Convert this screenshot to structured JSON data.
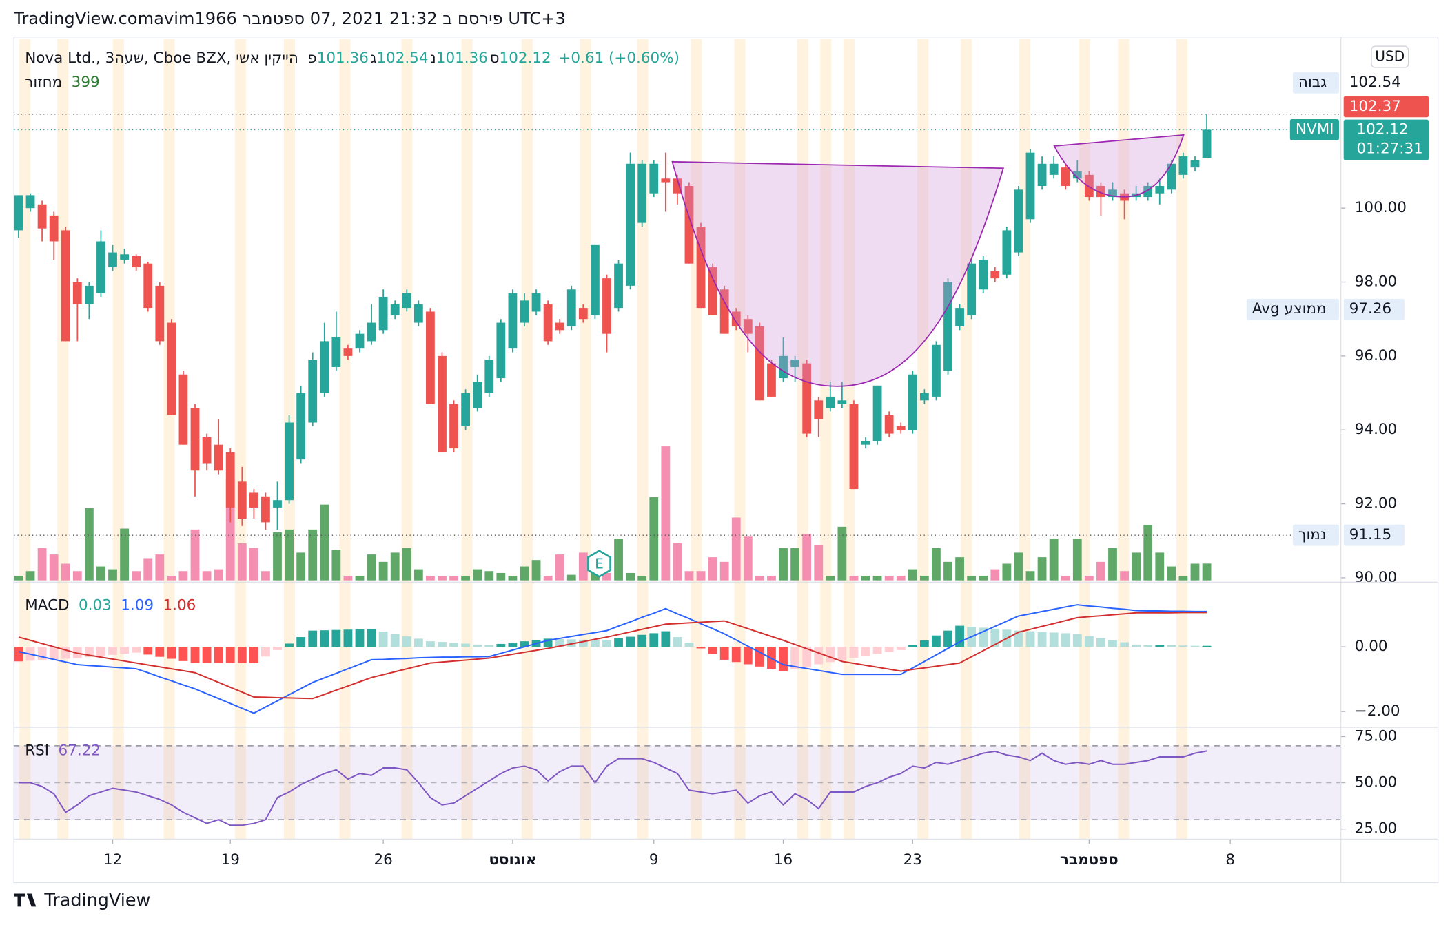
{
  "header": {
    "attribution": "TradingView.comavim1966 פירסם ב 21:32 2021 ,07 ספטמבר UTC+3",
    "logo": "TradingView"
  },
  "chart_data": {
    "type": "candlestick",
    "title": "Nova Ltd., 3שעה, Cboe BZX, הייקין אשי",
    "ohlc_labels": [
      "פ",
      "ג",
      "נ",
      "ס"
    ],
    "change": "+0.61 (+0.60%)",
    "currency": "USD",
    "up_color": "#26a69a",
    "down_color": "#ef5350",
    "candles": [
      [
        99.4,
        100.35,
        99.2,
        100.35
      ],
      [
        100.0,
        100.4,
        99.9,
        100.35
      ],
      [
        100.1,
        100.2,
        99.1,
        99.45
      ],
      [
        99.8,
        99.9,
        98.6,
        99.1
      ],
      [
        99.4,
        99.5,
        96.4,
        96.4
      ],
      [
        98.0,
        98.1,
        96.4,
        97.4
      ],
      [
        97.4,
        98.0,
        97.0,
        97.9
      ],
      [
        97.7,
        99.4,
        97.6,
        99.1
      ],
      [
        98.4,
        99.0,
        98.3,
        98.8
      ],
      [
        98.6,
        98.9,
        98.5,
        98.75
      ],
      [
        98.7,
        98.75,
        98.3,
        98.4
      ],
      [
        98.5,
        98.55,
        97.2,
        97.3
      ],
      [
        97.9,
        98.0,
        96.3,
        96.4
      ],
      [
        96.9,
        97.0,
        94.4,
        94.4
      ],
      [
        95.5,
        95.6,
        93.6,
        93.6
      ],
      [
        94.6,
        94.7,
        92.2,
        92.9
      ],
      [
        93.8,
        93.9,
        92.9,
        93.1
      ],
      [
        93.6,
        94.3,
        92.8,
        92.9
      ],
      [
        93.4,
        93.5,
        91.5,
        91.9
      ],
      [
        92.6,
        93.0,
        91.4,
        91.6
      ],
      [
        92.3,
        92.4,
        91.6,
        91.9
      ],
      [
        92.2,
        92.3,
        91.3,
        91.5
      ],
      [
        91.9,
        92.6,
        91.3,
        92.1
      ],
      [
        92.1,
        94.4,
        92.0,
        94.2
      ],
      [
        93.2,
        95.2,
        93.1,
        95.0
      ],
      [
        94.2,
        96.1,
        94.1,
        95.9
      ],
      [
        95.0,
        96.9,
        94.9,
        96.4
      ],
      [
        95.7,
        97.2,
        95.6,
        96.5
      ],
      [
        96.2,
        96.3,
        95.9,
        96.0
      ],
      [
        96.2,
        96.7,
        96.1,
        96.6
      ],
      [
        96.4,
        97.4,
        96.3,
        96.9
      ],
      [
        96.7,
        97.8,
        96.6,
        97.6
      ],
      [
        97.1,
        97.5,
        97.0,
        97.4
      ],
      [
        97.3,
        97.8,
        97.2,
        97.7
      ],
      [
        96.9,
        97.5,
        96.8,
        97.4
      ],
      [
        97.2,
        97.3,
        94.7,
        94.7
      ],
      [
        96.0,
        96.1,
        93.4,
        93.4
      ],
      [
        94.7,
        94.8,
        93.4,
        93.5
      ],
      [
        94.1,
        95.1,
        94.0,
        95.0
      ],
      [
        94.6,
        95.5,
        94.5,
        95.3
      ],
      [
        95.0,
        96.0,
        94.9,
        95.9
      ],
      [
        95.4,
        97.0,
        95.3,
        96.9
      ],
      [
        96.2,
        97.8,
        96.1,
        97.7
      ],
      [
        96.9,
        97.7,
        96.8,
        97.5
      ],
      [
        97.2,
        97.8,
        97.1,
        97.7
      ],
      [
        97.4,
        97.5,
        96.3,
        96.4
      ],
      [
        96.9,
        97.0,
        96.6,
        96.7
      ],
      [
        96.8,
        97.9,
        96.7,
        97.8
      ],
      [
        97.3,
        97.4,
        96.9,
        97.0
      ],
      [
        97.1,
        99.0,
        97.0,
        99.0
      ],
      [
        98.1,
        98.2,
        96.1,
        96.6
      ],
      [
        97.3,
        98.6,
        97.2,
        98.5
      ],
      [
        97.9,
        101.5,
        97.8,
        101.2
      ],
      [
        99.6,
        101.3,
        99.5,
        101.2
      ],
      [
        100.4,
        101.3,
        100.3,
        101.2
      ],
      [
        100.8,
        101.5,
        99.9,
        100.7
      ],
      [
        100.8,
        100.9,
        100.1,
        100.4
      ],
      [
        100.6,
        100.7,
        98.5,
        98.5
      ],
      [
        99.5,
        99.6,
        97.3,
        97.3
      ],
      [
        98.4,
        98.5,
        97.1,
        97.1
      ],
      [
        97.8,
        97.9,
        96.6,
        96.6
      ],
      [
        97.2,
        97.3,
        96.7,
        96.8
      ],
      [
        97.0,
        97.1,
        96.1,
        96.6
      ],
      [
        96.8,
        96.9,
        94.8,
        94.8
      ],
      [
        95.8,
        95.9,
        94.9,
        94.9
      ],
      [
        95.4,
        96.5,
        95.3,
        96.0
      ],
      [
        95.7,
        96.0,
        95.3,
        95.9
      ],
      [
        95.8,
        95.9,
        93.8,
        93.9
      ],
      [
        94.8,
        94.9,
        93.8,
        94.3
      ],
      [
        94.6,
        95.3,
        94.5,
        94.9
      ],
      [
        94.7,
        95.3,
        94.6,
        94.8
      ],
      [
        94.7,
        94.8,
        92.4,
        92.4
      ],
      [
        93.6,
        93.8,
        93.5,
        93.7
      ],
      [
        93.7,
        95.2,
        93.6,
        95.2
      ],
      [
        94.4,
        94.5,
        93.8,
        93.9
      ],
      [
        94.1,
        94.2,
        93.9,
        94.0
      ],
      [
        94.0,
        95.6,
        93.9,
        95.5
      ],
      [
        94.8,
        95.1,
        94.7,
        95.0
      ],
      [
        94.9,
        96.4,
        94.8,
        96.3
      ],
      [
        95.6,
        98.1,
        95.5,
        98.0
      ],
      [
        96.8,
        97.4,
        96.7,
        97.3
      ],
      [
        97.1,
        98.6,
        97.0,
        98.5
      ],
      [
        97.8,
        98.7,
        97.7,
        98.6
      ],
      [
        98.3,
        98.4,
        98.0,
        98.1
      ],
      [
        98.2,
        99.5,
        98.1,
        99.4
      ],
      [
        98.8,
        100.6,
        98.7,
        100.5
      ],
      [
        99.7,
        101.6,
        99.6,
        101.5
      ],
      [
        100.6,
        101.4,
        100.5,
        101.2
      ],
      [
        100.9,
        101.4,
        100.8,
        101.2
      ],
      [
        101.1,
        101.2,
        100.5,
        100.6
      ],
      [
        100.8,
        101.3,
        100.7,
        101.0
      ],
      [
        100.9,
        101.0,
        100.2,
        100.3
      ],
      [
        100.6,
        100.7,
        99.8,
        100.3
      ],
      [
        100.3,
        100.7,
        100.2,
        100.5
      ],
      [
        100.4,
        100.5,
        99.7,
        100.2
      ],
      [
        100.3,
        100.6,
        100.2,
        100.4
      ],
      [
        100.3,
        100.7,
        100.2,
        100.6
      ],
      [
        100.4,
        100.8,
        100.1,
        100.6
      ],
      [
        100.5,
        101.3,
        100.4,
        101.2
      ],
      [
        100.9,
        101.5,
        100.8,
        101.4
      ],
      [
        101.1,
        101.4,
        101.0,
        101.3
      ],
      [
        101.36,
        102.54,
        101.36,
        102.12
      ]
    ],
    "volume": {
      "label": "מחזור",
      "up_color": "#5fa868",
      "down_color": "#f48fb1",
      "values": [
        110,
        220,
        770,
        616,
        396,
        220,
        1716,
        330,
        264,
        1232,
        220,
        528,
        616,
        110,
        220,
        1210,
        220,
        264,
        2420,
        880,
        770,
        220,
        1144,
        1210,
        660,
        1210,
        1804,
        726,
        110,
        110,
        616,
        440,
        660,
        770,
        264,
        110,
        110,
        110,
        110,
        264,
        220,
        176,
        110,
        330,
        484,
        110,
        616,
        132,
        660,
        484,
        176,
        990,
        176,
        110,
        1980,
        3190,
        880,
        220,
        220,
        550,
        440,
        1496,
        1056,
        110,
        110,
        770,
        770,
        1100,
        836,
        110,
        1276,
        110,
        110,
        110,
        110,
        110,
        264,
        110,
        770,
        440,
        550,
        110,
        110,
        264,
        396,
        660,
        220,
        550,
        990,
        110,
        990,
        110,
        440,
        770,
        220,
        660,
        1320,
        660,
        330,
        110,
        396,
        399
      ]
    },
    "xlim": [
      -0.4,
      112.4
    ],
    "xticks": [
      {
        "value": 8,
        "label": "12"
      },
      {
        "value": 18,
        "label": "19"
      },
      {
        "value": 31,
        "label": "26"
      },
      {
        "value": 42,
        "label": "אוגוסט"
      },
      {
        "value": 54,
        "label": "9"
      },
      {
        "value": 65,
        "label": "16"
      },
      {
        "value": 76,
        "label": "23"
      },
      {
        "value": 91,
        "label": "ספטמבר"
      },
      {
        "value": 103,
        "label": "8"
      }
    ],
    "ylim": [
      89.93,
      104.58
    ],
    "yticks": [
      {
        "value": 90,
        "label": "90.00"
      },
      {
        "value": 92,
        "label": "92.00"
      },
      {
        "value": 94,
        "label": "94.00"
      },
      {
        "value": 96,
        "label": "96.00"
      },
      {
        "value": 98,
        "label": "98.00"
      },
      {
        "value": 100,
        "label": "100.00"
      }
    ],
    "high_label": "גבוה",
    "ticker": "NVMI",
    "countdown": "01:27:31",
    "pre_price": 102.37,
    "avg": {
      "label": "Avg ממוצע",
      "value": 97.26
    },
    "low": {
      "label": "נמוך",
      "value": 91.15
    },
    "earnings_label": "E",
    "macd": {
      "title": "MACD",
      "ylim": [
        -2.43,
        1.71
      ],
      "yticks": [
        {
          "value": 0,
          "label": "0.00"
        },
        {
          "value": -2,
          "label": "−2.00"
        }
      ],
      "macd_color": "#2962ff",
      "signal_color": "#d32f2f",
      "macd": [
        -0.15,
        -0.23,
        -0.31,
        -0.39,
        -0.47,
        -0.55,
        -0.58,
        -0.6,
        -0.63,
        -0.65,
        -0.68,
        -0.8,
        -0.93,
        -1.05,
        -1.18,
        -1.3,
        -1.45,
        -1.6,
        -1.75,
        -1.9,
        -2.05,
        -1.86,
        -1.67,
        -1.48,
        -1.29,
        -1.1,
        -0.96,
        -0.82,
        -0.68,
        -0.54,
        -0.4,
        -0.39,
        -0.37,
        -0.36,
        -0.34,
        -0.33,
        -0.32,
        -0.32,
        -0.31,
        -0.31,
        -0.3,
        -0.2,
        -0.1,
        0.0,
        0.1,
        0.2,
        0.26,
        0.32,
        0.38,
        0.44,
        0.5,
        0.64,
        0.77,
        0.91,
        1.04,
        1.18,
        1.02,
        0.87,
        0.71,
        0.56,
        0.4,
        0.21,
        0.02,
        -0.17,
        -0.36,
        -0.55,
        -0.61,
        -0.67,
        -0.73,
        -0.79,
        -0.85,
        -0.85,
        -0.85,
        -0.85,
        -0.85,
        -0.85,
        -0.65,
        -0.45,
        -0.25,
        -0.05,
        0.15,
        0.31,
        0.47,
        0.63,
        0.79,
        0.95,
        1.02,
        1.09,
        1.16,
        1.23,
        1.3,
        1.26,
        1.23,
        1.19,
        1.16,
        1.12,
        1.11,
        1.11,
        1.1,
        1.1,
        1.09,
        1.09
      ],
      "signal": [
        0.3,
        0.2,
        0.1,
        0.0,
        -0.1,
        -0.2,
        -0.26,
        -0.32,
        -0.38,
        -0.44,
        -0.5,
        -0.56,
        -0.62,
        -0.68,
        -0.74,
        -0.8,
        -0.95,
        -1.1,
        -1.25,
        -1.4,
        -1.55,
        -1.56,
        -1.57,
        -1.58,
        -1.59,
        -1.6,
        -1.47,
        -1.34,
        -1.21,
        -1.08,
        -0.95,
        -0.86,
        -0.77,
        -0.68,
        -0.59,
        -0.5,
        -0.47,
        -0.44,
        -0.41,
        -0.38,
        -0.35,
        -0.29,
        -0.23,
        -0.17,
        -0.11,
        -0.05,
        0.02,
        0.09,
        0.16,
        0.23,
        0.3,
        0.38,
        0.46,
        0.54,
        0.62,
        0.7,
        0.72,
        0.74,
        0.76,
        0.78,
        0.8,
        0.68,
        0.56,
        0.44,
        0.32,
        0.2,
        0.07,
        -0.06,
        -0.19,
        -0.32,
        -0.45,
        -0.51,
        -0.57,
        -0.63,
        -0.69,
        -0.75,
        -0.7,
        -0.65,
        -0.6,
        -0.55,
        -0.5,
        -0.31,
        -0.12,
        0.07,
        0.26,
        0.45,
        0.54,
        0.63,
        0.72,
        0.81,
        0.9,
        0.93,
        0.96,
        0.99,
        1.02,
        1.05,
        1.05,
        1.05,
        1.05,
        1.06,
        1.06,
        1.06
      ],
      "histogram": [
        -0.45,
        -0.43,
        -0.41,
        -0.39,
        -0.37,
        -0.35,
        -0.32,
        -0.28,
        -0.25,
        -0.21,
        -0.18,
        -0.24,
        -0.31,
        -0.37,
        -0.44,
        -0.5,
        -0.5,
        -0.5,
        -0.5,
        -0.5,
        -0.5,
        -0.3,
        -0.1,
        0.1,
        0.3,
        0.5,
        0.51,
        0.52,
        0.53,
        0.54,
        0.55,
        0.47,
        0.4,
        0.32,
        0.25,
        0.17,
        0.15,
        0.12,
        0.1,
        0.07,
        0.05,
        0.09,
        0.13,
        0.17,
        0.21,
        0.25,
        0.24,
        0.23,
        0.22,
        0.21,
        0.2,
        0.26,
        0.31,
        0.37,
        0.42,
        0.48,
        0.3,
        0.13,
        -0.05,
        -0.22,
        -0.4,
        -0.47,
        -0.54,
        -0.61,
        -0.68,
        -0.75,
        -0.68,
        -0.61,
        -0.54,
        -0.47,
        -0.4,
        -0.34,
        -0.28,
        -0.22,
        -0.16,
        -0.1,
        0.05,
        0.2,
        0.35,
        0.5,
        0.65,
        0.62,
        0.59,
        0.56,
        0.53,
        0.5,
        0.48,
        0.46,
        0.44,
        0.42,
        0.4,
        0.33,
        0.27,
        0.2,
        0.14,
        0.07,
        0.06,
        0.06,
        0.05,
        0.04,
        0.03,
        0.03
      ]
    },
    "rsi": {
      "title": "RSI",
      "color": "#7e57c2",
      "ylim": [
        19.5,
        78.5
      ],
      "levels": [
        30,
        50,
        70
      ],
      "yticks": [
        {
          "value": 25,
          "label": "25.00"
        },
        {
          "value": 50,
          "label": "50.00"
        },
        {
          "value": 75,
          "label": "75.00"
        }
      ],
      "values": [
        50,
        50,
        48,
        44,
        34,
        38,
        43,
        45,
        47,
        46,
        45,
        43,
        41,
        38,
        34,
        31,
        28,
        30,
        27,
        27,
        28,
        30,
        42,
        45,
        49,
        52,
        55,
        57,
        52,
        55,
        54,
        58,
        58,
        57,
        50,
        42,
        38,
        39,
        43,
        47,
        51,
        55,
        58,
        59,
        57,
        51,
        56,
        59,
        59,
        50,
        59,
        63,
        63,
        63,
        61,
        58,
        55,
        46,
        45,
        44,
        45,
        46,
        39,
        43,
        45,
        38,
        44,
        41,
        36,
        45,
        45,
        45,
        48,
        50,
        53,
        55,
        59,
        58,
        61,
        60,
        62,
        64,
        66,
        67,
        65,
        64,
        62,
        66,
        62,
        60,
        61,
        60,
        62,
        60,
        60,
        61,
        62,
        64,
        64,
        64,
        66,
        67.22
      ]
    }
  }
}
